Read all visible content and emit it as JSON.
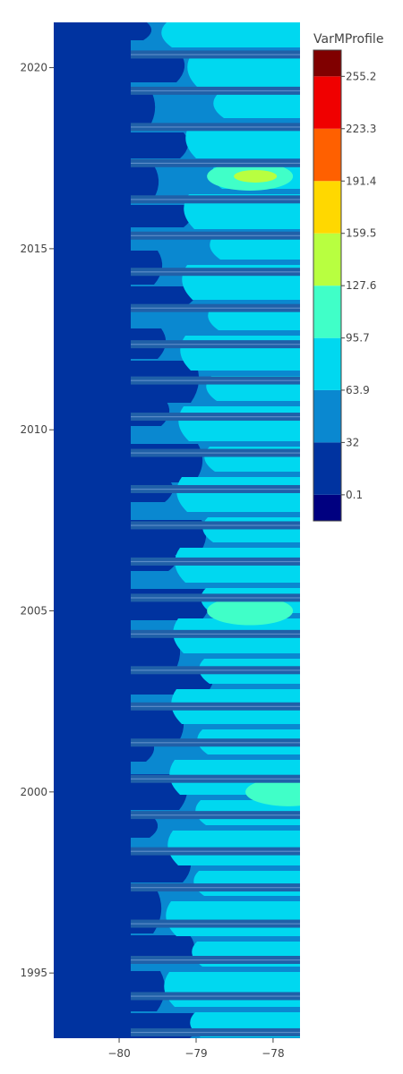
{
  "chart_data": {
    "type": "contour",
    "x_ticks": [
      -80,
      -79,
      -78
    ],
    "x_tick_labels": [
      "−80",
      "−79",
      "−78"
    ],
    "x_range": [
      -80.85,
      -77.65
    ],
    "y_ticks": [
      1995,
      2000,
      2005,
      2010,
      2015,
      2020
    ],
    "y_range": [
      1993.2,
      2021.25
    ],
    "colorbar": {
      "title": "VarMProfile",
      "tick_values": [
        0.1,
        32,
        63.9,
        95.7,
        127.6,
        159.5,
        191.4,
        223.3,
        255.2
      ],
      "tick_labels": [
        "0.1",
        "32",
        "63.9",
        "95.7",
        "127.6",
        "159.5",
        "191.4",
        "223.3",
        "255.2"
      ],
      "range": [
        -15.8,
        271.2
      ],
      "colors": [
        "#000080",
        "#0033a0",
        "#0a88d0",
        "#00d8f0",
        "#40ffc8",
        "#b8ff40",
        "#ffd800",
        "#ff6000",
        "#f00000",
        "#800000"
      ]
    },
    "levels": [
      {
        "x": -80.5,
        "y": 2010,
        "value": 20
      },
      {
        "x": -79.5,
        "y": 2016,
        "value": 45
      },
      {
        "x": -78.3,
        "y": 2017,
        "value": 140
      },
      {
        "x": -78.3,
        "y": 2005,
        "value": 120
      },
      {
        "x": -77.8,
        "y": 2000,
        "value": 130
      }
    ]
  }
}
